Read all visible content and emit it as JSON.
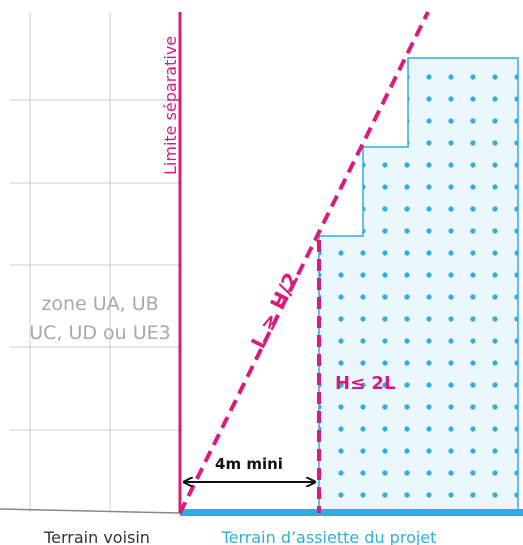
{
  "labels": {
    "limit": "Limite séparative",
    "neighbor_zone_line1": "zone UA, UB",
    "neighbor_zone_line2": "UC, UD ou UE3",
    "slope_rule": "L ≥ H/2",
    "height_rule": "H≤ 2L",
    "distance": "4m mini",
    "ground_left": "Terrain voisin",
    "ground_right": "Terrain d’assiette du projet"
  },
  "colors": {
    "magenta": "#d81b7d",
    "blue": "#2eaee0",
    "building_fill": "#eaf7fc",
    "grid": "#cccccc",
    "arrow": "#111111"
  }
}
